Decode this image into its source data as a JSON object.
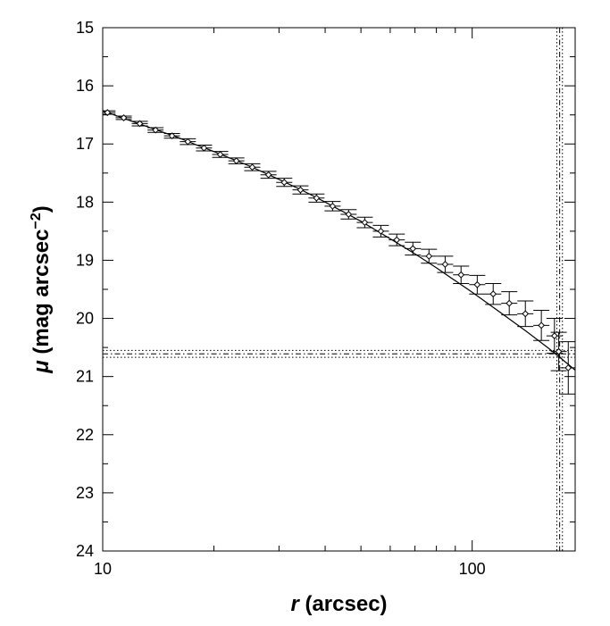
{
  "chart_data": {
    "type": "scatter",
    "title": "",
    "xlabel_var": "r",
    "xlabel_unit": " (arcsec)",
    "ylabel_var": "μ",
    "ylabel_unit": " (mag arcsec",
    "ylabel_exp": "−2",
    "ylabel_close": ")",
    "x_scale": "log",
    "xlim": [
      10,
      190
    ],
    "ylim": [
      24,
      15
    ],
    "y_inverted": true,
    "grid": false,
    "x_ticks": [
      {
        "value": 10,
        "label": "10"
      },
      {
        "value": 100,
        "label": "100"
      }
    ],
    "y_ticks": [
      {
        "value": 15,
        "label": "15"
      },
      {
        "value": 16,
        "label": "16"
      },
      {
        "value": 17,
        "label": "17"
      },
      {
        "value": 18,
        "label": "18"
      },
      {
        "value": 19,
        "label": "19"
      },
      {
        "value": 20,
        "label": "20"
      },
      {
        "value": 21,
        "label": "21"
      },
      {
        "value": 22,
        "label": "22"
      },
      {
        "value": 23,
        "label": "23"
      },
      {
        "value": 24,
        "label": "24"
      }
    ],
    "series": [
      {
        "marker": "diamond",
        "points": [
          {
            "x": 10.3,
            "y": 16.46,
            "err_y": 0.03
          },
          {
            "x": 11.4,
            "y": 16.55,
            "err_y": 0.03
          },
          {
            "x": 12.6,
            "y": 16.65,
            "err_y": 0.04
          },
          {
            "x": 13.9,
            "y": 16.76,
            "err_y": 0.04
          },
          {
            "x": 15.4,
            "y": 16.86,
            "err_y": 0.04
          },
          {
            "x": 17.0,
            "y": 16.96,
            "err_y": 0.05
          },
          {
            "x": 18.8,
            "y": 17.07,
            "err_y": 0.05
          },
          {
            "x": 20.8,
            "y": 17.18,
            "err_y": 0.05
          },
          {
            "x": 23.0,
            "y": 17.29,
            "err_y": 0.05
          },
          {
            "x": 25.4,
            "y": 17.4,
            "err_y": 0.06
          },
          {
            "x": 28.1,
            "y": 17.53,
            "err_y": 0.06
          },
          {
            "x": 31.0,
            "y": 17.66,
            "err_y": 0.07
          },
          {
            "x": 34.3,
            "y": 17.79,
            "err_y": 0.07
          },
          {
            "x": 37.9,
            "y": 17.93,
            "err_y": 0.07
          },
          {
            "x": 41.9,
            "y": 18.07,
            "err_y": 0.08
          },
          {
            "x": 46.3,
            "y": 18.21,
            "err_y": 0.08
          },
          {
            "x": 51.2,
            "y": 18.35,
            "err_y": 0.09
          },
          {
            "x": 56.6,
            "y": 18.5,
            "err_y": 0.1
          },
          {
            "x": 62.5,
            "y": 18.65,
            "err_y": 0.1
          },
          {
            "x": 69.1,
            "y": 18.8,
            "err_y": 0.11
          },
          {
            "x": 76.4,
            "y": 18.93,
            "err_y": 0.12
          },
          {
            "x": 84.5,
            "y": 19.07,
            "err_y": 0.14
          },
          {
            "x": 93.3,
            "y": 19.25,
            "err_y": 0.15
          },
          {
            "x": 103.2,
            "y": 19.42,
            "err_y": 0.16
          },
          {
            "x": 114.0,
            "y": 19.58,
            "err_y": 0.18
          },
          {
            "x": 126.0,
            "y": 19.74,
            "err_y": 0.2
          },
          {
            "x": 139.3,
            "y": 19.92,
            "err_y": 0.22
          },
          {
            "x": 153.9,
            "y": 20.12,
            "err_y": 0.26
          },
          {
            "x": 167.0,
            "y": 20.3,
            "err_y": 0.3
          },
          {
            "x": 171.5,
            "y": 20.57,
            "err_y": 0.33
          },
          {
            "x": 182.0,
            "y": 20.85,
            "err_y": 0.45
          }
        ]
      }
    ],
    "fit_curve": {
      "style": "solid",
      "x": [
        10,
        12,
        14,
        16,
        18,
        20,
        25,
        30,
        35,
        40,
        50,
        60,
        70,
        80,
        100,
        120,
        140,
        160,
        175,
        190
      ],
      "y": [
        16.43,
        16.61,
        16.76,
        16.89,
        17.02,
        17.13,
        17.38,
        17.61,
        17.81,
        18.0,
        18.33,
        18.63,
        18.89,
        19.13,
        19.55,
        19.91,
        20.22,
        20.5,
        20.7,
        20.89
      ]
    },
    "reference_lines": [
      {
        "orientation": "horizontal",
        "value": 20.55,
        "style": "dotted"
      },
      {
        "orientation": "horizontal",
        "value": 20.61,
        "style": "dashdot"
      },
      {
        "orientation": "horizontal",
        "value": 20.67,
        "style": "dotted"
      },
      {
        "orientation": "vertical",
        "value": 169.5,
        "style": "dotted"
      },
      {
        "orientation": "vertical",
        "value": 172.5,
        "style": "dashdot"
      },
      {
        "orientation": "vertical",
        "value": 175.5,
        "style": "dotted"
      }
    ]
  }
}
